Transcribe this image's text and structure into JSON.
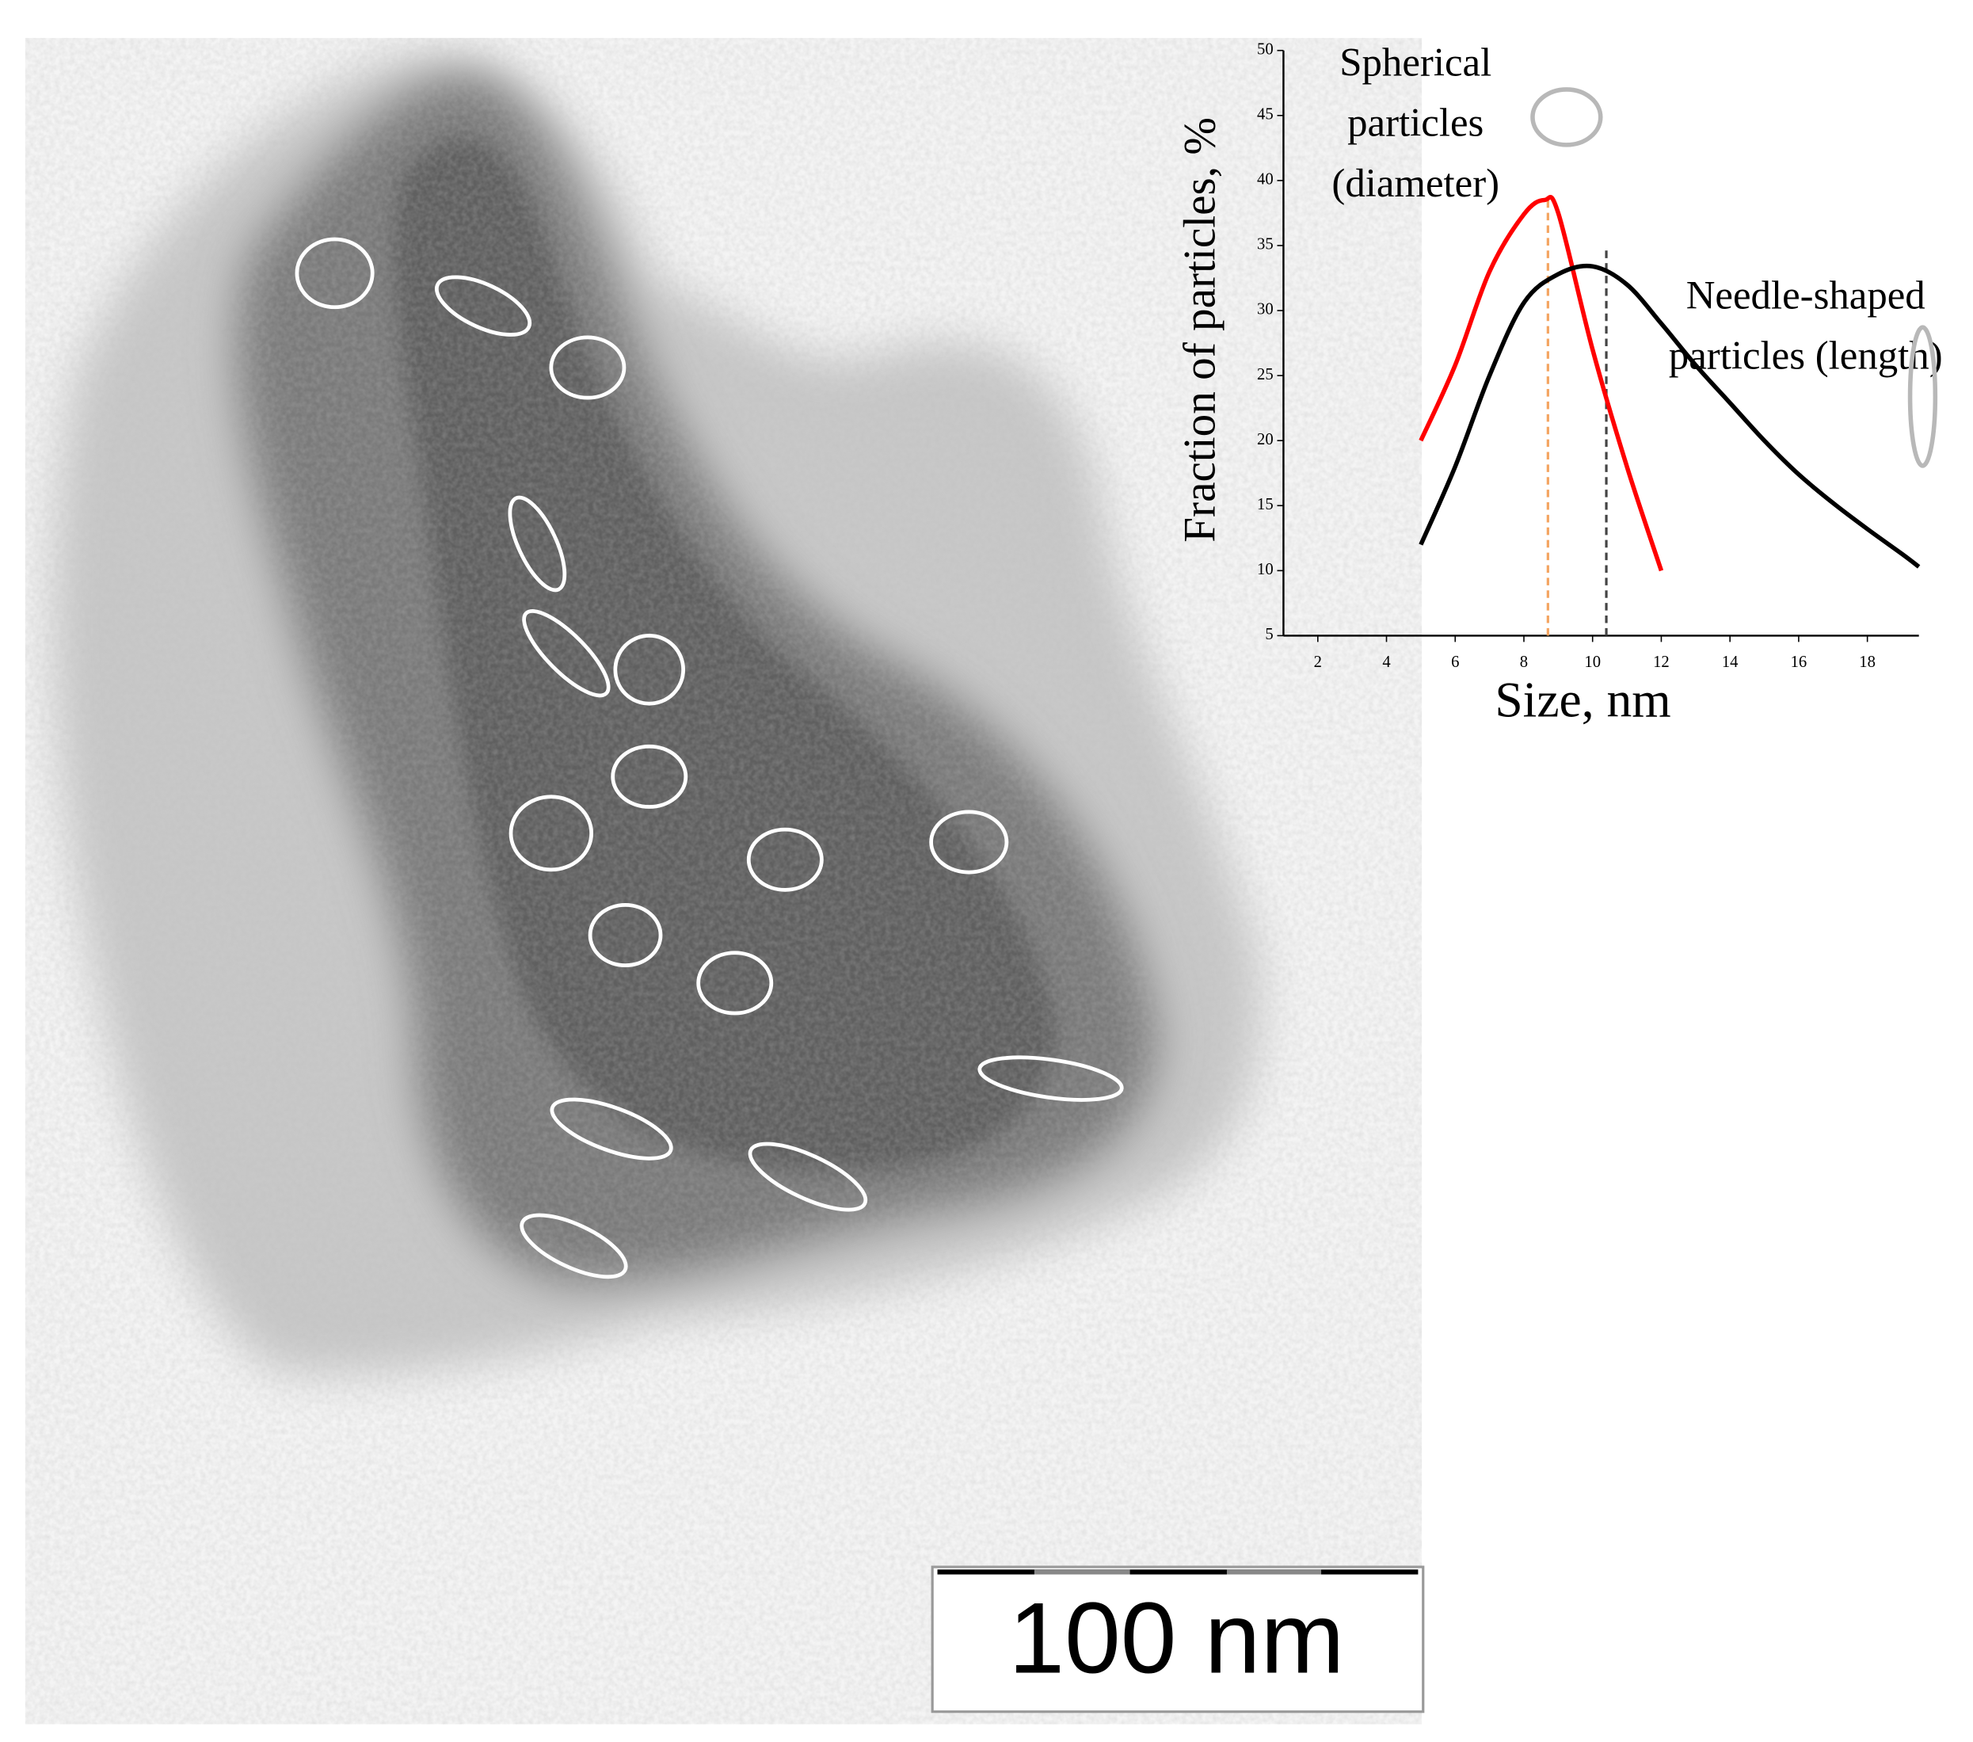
{
  "chart_data": {
    "type": "line",
    "x_label": "Size, nm",
    "y_label": "Fraction of particles, %",
    "xlim": [
      1,
      19.5
    ],
    "xticks": [
      2,
      4,
      6,
      8,
      10,
      12,
      14,
      16,
      18
    ],
    "ylim": [
      5,
      50
    ],
    "yticks": [
      5,
      10,
      15,
      20,
      25,
      30,
      35,
      40,
      45,
      50
    ],
    "series": [
      {
        "name": "Spherical particles (diameter)",
        "color": "#ff0000",
        "x": [
          5,
          6,
          7,
          8,
          8.6,
          9,
          10,
          11,
          12
        ],
        "values": [
          20,
          25.8,
          33,
          37.4,
          38.5,
          37.5,
          27,
          18,
          10
        ]
      },
      {
        "name": "Needle-shaped particles (length)",
        "color": "#000000",
        "x": [
          5,
          6,
          7,
          8,
          9,
          10,
          11,
          12,
          13,
          14,
          15,
          16,
          17,
          18,
          19,
          19.5
        ],
        "values": [
          12,
          18,
          25,
          30.6,
          32.8,
          33.4,
          32,
          29,
          25.8,
          22.9,
          20,
          17.4,
          15.2,
          13.2,
          11.3,
          10.3
        ]
      }
    ],
    "reference_lines": [
      {
        "x": 8.7,
        "y": 38.5,
        "color": "#f4a460"
      },
      {
        "x": 10.4,
        "y": 35,
        "color": "#444444"
      }
    ]
  },
  "scale_bar": {
    "label": "100 nm"
  }
}
